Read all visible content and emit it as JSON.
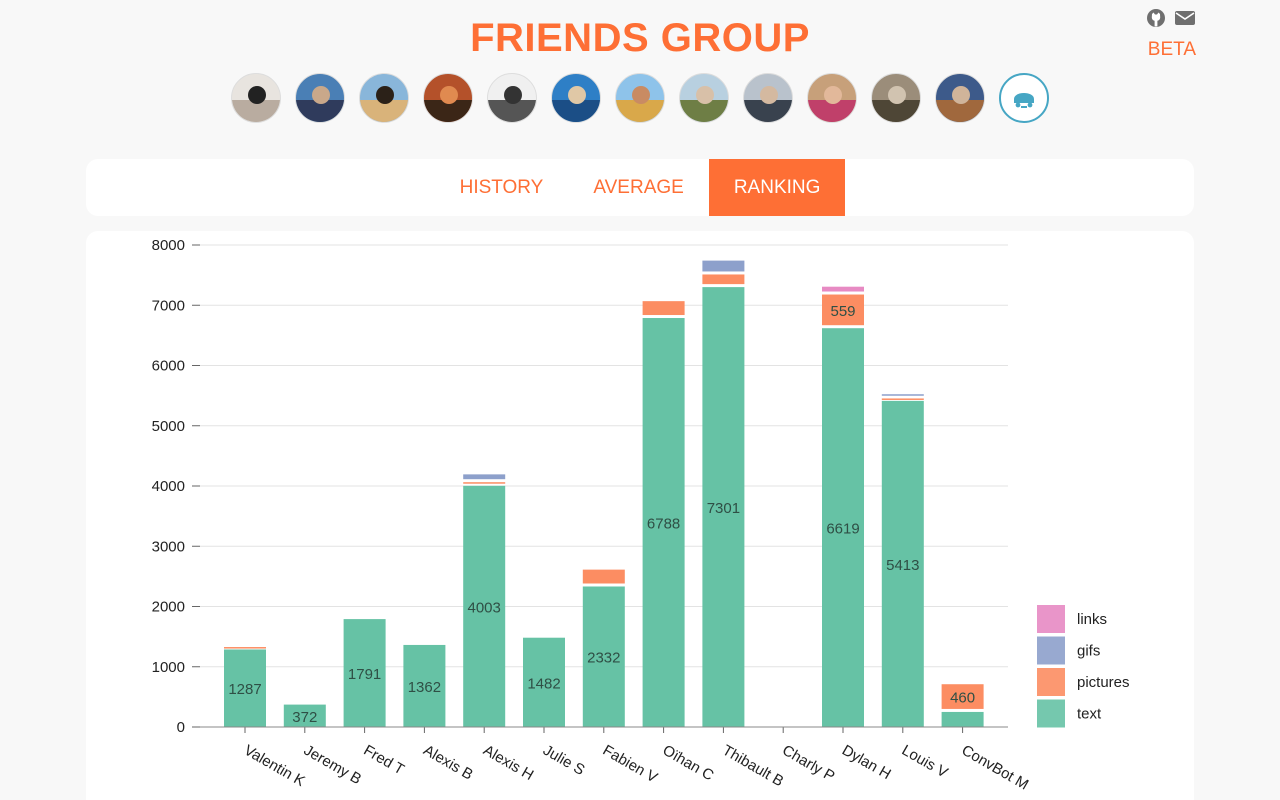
{
  "header": {
    "title": "FRIENDS GROUP",
    "badge": "BETA",
    "icons": [
      "github-icon",
      "envelope-icon"
    ]
  },
  "avatars": [
    {
      "name": "Valentin K",
      "colors": [
        "#e8e4df",
        "#b9aca0",
        "#222"
      ]
    },
    {
      "name": "Jeremy B",
      "colors": [
        "#4a7fb5",
        "#2f3b5c",
        "#c9a88a"
      ]
    },
    {
      "name": "Fred T",
      "colors": [
        "#89b6da",
        "#d9b37a",
        "#2b2118"
      ]
    },
    {
      "name": "Alexis B",
      "colors": [
        "#b4512a",
        "#3b2617",
        "#e08a50"
      ]
    },
    {
      "name": "Alexis H",
      "colors": [
        "#f0f0f0",
        "#555",
        "#333"
      ]
    },
    {
      "name": "Julie S",
      "colors": [
        "#2e7fc6",
        "#1b4e86",
        "#e0c8a6"
      ]
    },
    {
      "name": "Fabien V",
      "colors": [
        "#8ec3ea",
        "#d9a84a",
        "#c98b63"
      ]
    },
    {
      "name": "Oïhan C",
      "colors": [
        "#b8d0e0",
        "#6e7e45",
        "#d8c0a8"
      ]
    },
    {
      "name": "Thibault B",
      "colors": [
        "#b9c2cc",
        "#39424e",
        "#d4b9a0"
      ]
    },
    {
      "name": "Charly P",
      "colors": [
        "#c7a07a",
        "#c0406a",
        "#e2b89a"
      ]
    },
    {
      "name": "Dylan H",
      "colors": [
        "#9b8d7a",
        "#4e4636",
        "#d1c3b0"
      ]
    },
    {
      "name": "Louis V",
      "colors": [
        "#3d5a8a",
        "#a0683d",
        "#d0b49a"
      ]
    },
    {
      "name": "ConvBot M",
      "colors": [
        "#ffffff",
        "#46a6c4",
        "#46a6c4"
      ]
    }
  ],
  "tabs": [
    {
      "label": "HISTORY",
      "active": false
    },
    {
      "label": "AVERAGE",
      "active": false
    },
    {
      "label": "RANKING",
      "active": true
    }
  ],
  "chart_data": {
    "type": "bar",
    "stacked": true,
    "categories": [
      "Valentin K",
      "Jeremy B",
      "Fred T",
      "Alexis B",
      "Alexis H",
      "Julie S",
      "Fabien V",
      "Oïhan C",
      "Thibault B",
      "Charly P",
      "Dylan H",
      "Louis V",
      "ConvBot M"
    ],
    "series": [
      {
        "name": "text",
        "color": "#66c2a5",
        "values": [
          1287,
          372,
          1791,
          1362,
          4003,
          1482,
          2332,
          6788,
          7301,
          0,
          6619,
          5413,
          250
        ],
        "labels": [
          "1287",
          "372",
          "1791",
          "1362",
          "4003",
          "1482",
          "2332",
          "6788",
          "7301",
          "",
          "6619",
          "5413",
          ""
        ]
      },
      {
        "name": "pictures",
        "color": "#fc8d62",
        "values": [
          40,
          0,
          0,
          0,
          60,
          0,
          280,
          280,
          210,
          0,
          559,
          40,
          460
        ],
        "labels": [
          "",
          "",
          "",
          "",
          "",
          "",
          "",
          "",
          "",
          "",
          "559",
          "",
          "460"
        ]
      },
      {
        "name": "gifs",
        "color": "#8da0cb",
        "values": [
          0,
          0,
          0,
          0,
          130,
          0,
          0,
          0,
          230,
          0,
          0,
          70,
          0
        ],
        "labels": [
          "",
          "",
          "",
          "",
          "",
          "",
          "",
          "",
          "",
          "",
          "",
          "",
          ""
        ]
      },
      {
        "name": "links",
        "color": "#e78ac3",
        "values": [
          0,
          0,
          0,
          0,
          0,
          0,
          0,
          0,
          0,
          0,
          130,
          0,
          0
        ],
        "labels": [
          "",
          "",
          "",
          "",
          "",
          "",
          "",
          "",
          "",
          "",
          "",
          "",
          ""
        ]
      }
    ],
    "ylim": [
      0,
      8000
    ],
    "yticks": [
      0,
      1000,
      2000,
      3000,
      4000,
      5000,
      6000,
      7000,
      8000
    ],
    "grid": true,
    "legend": {
      "position": "bottom-right",
      "order": [
        "links",
        "gifs",
        "pictures",
        "text"
      ]
    }
  }
}
